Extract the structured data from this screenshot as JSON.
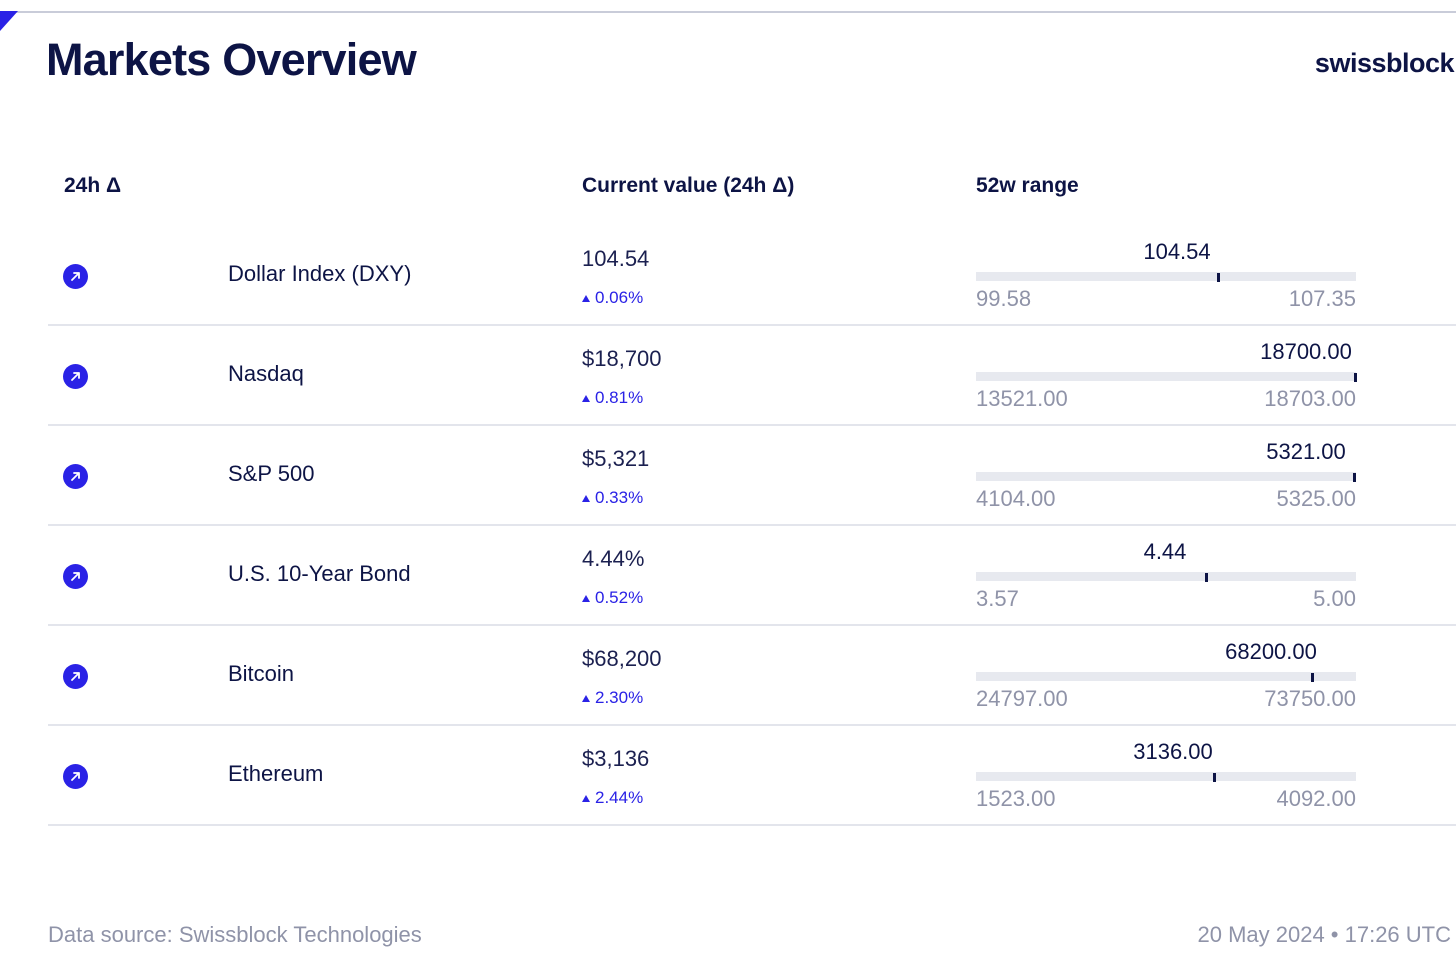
{
  "header": {
    "title": "Markets Overview",
    "brand": "swissblock"
  },
  "columns": {
    "delta": "24h Δ",
    "current": "Current value (24h Δ)",
    "range": "52w range"
  },
  "icons": {
    "row_icon": "arrow-up-right-icon"
  },
  "colors": {
    "accent": "#2a22e6",
    "text": "#0d1445",
    "muted": "#8f93a8"
  },
  "rows": [
    {
      "name": "Dollar Index (DXY)",
      "value": "104.54",
      "change": "0.06%",
      "range": {
        "current": 104.54,
        "current_label": "104.54",
        "min_label": "99.58",
        "max_label": "107.35",
        "min": 99.58,
        "max": 107.35
      }
    },
    {
      "name": "Nasdaq",
      "value": "$18,700",
      "change": "0.81%",
      "range": {
        "current": 18700,
        "current_label": "18700.00",
        "min_label": "13521.00",
        "max_label": "18703.00",
        "min": 13521,
        "max": 18703
      }
    },
    {
      "name": "S&P 500",
      "value": "$5,321",
      "change": "0.33%",
      "range": {
        "current": 5321,
        "current_label": "5321.00",
        "min_label": "4104.00",
        "max_label": "5325.00",
        "min": 4104,
        "max": 5325
      }
    },
    {
      "name": "U.S. 10-Year Bond",
      "value": "4.44%",
      "change": "0.52%",
      "range": {
        "current": 4.44,
        "current_label": "4.44",
        "min_label": "3.57",
        "max_label": "5.00",
        "min": 3.57,
        "max": 5.0
      }
    },
    {
      "name": "Bitcoin",
      "value": "$68,200",
      "change": "2.30%",
      "range": {
        "current": 68200,
        "current_label": "68200.00",
        "min_label": "24797.00",
        "max_label": "73750.00",
        "min": 24797,
        "max": 73750
      }
    },
    {
      "name": "Ethereum",
      "value": "$3,136",
      "change": "2.44%",
      "range": {
        "current": 3136,
        "current_label": "3136.00",
        "min_label": "1523.00",
        "max_label": "4092.00",
        "min": 1523,
        "max": 4092
      }
    }
  ],
  "footer": {
    "source": "Data source: Swissblock Technologies",
    "timestamp": "20 May 2024 • 17:26 UTC"
  }
}
